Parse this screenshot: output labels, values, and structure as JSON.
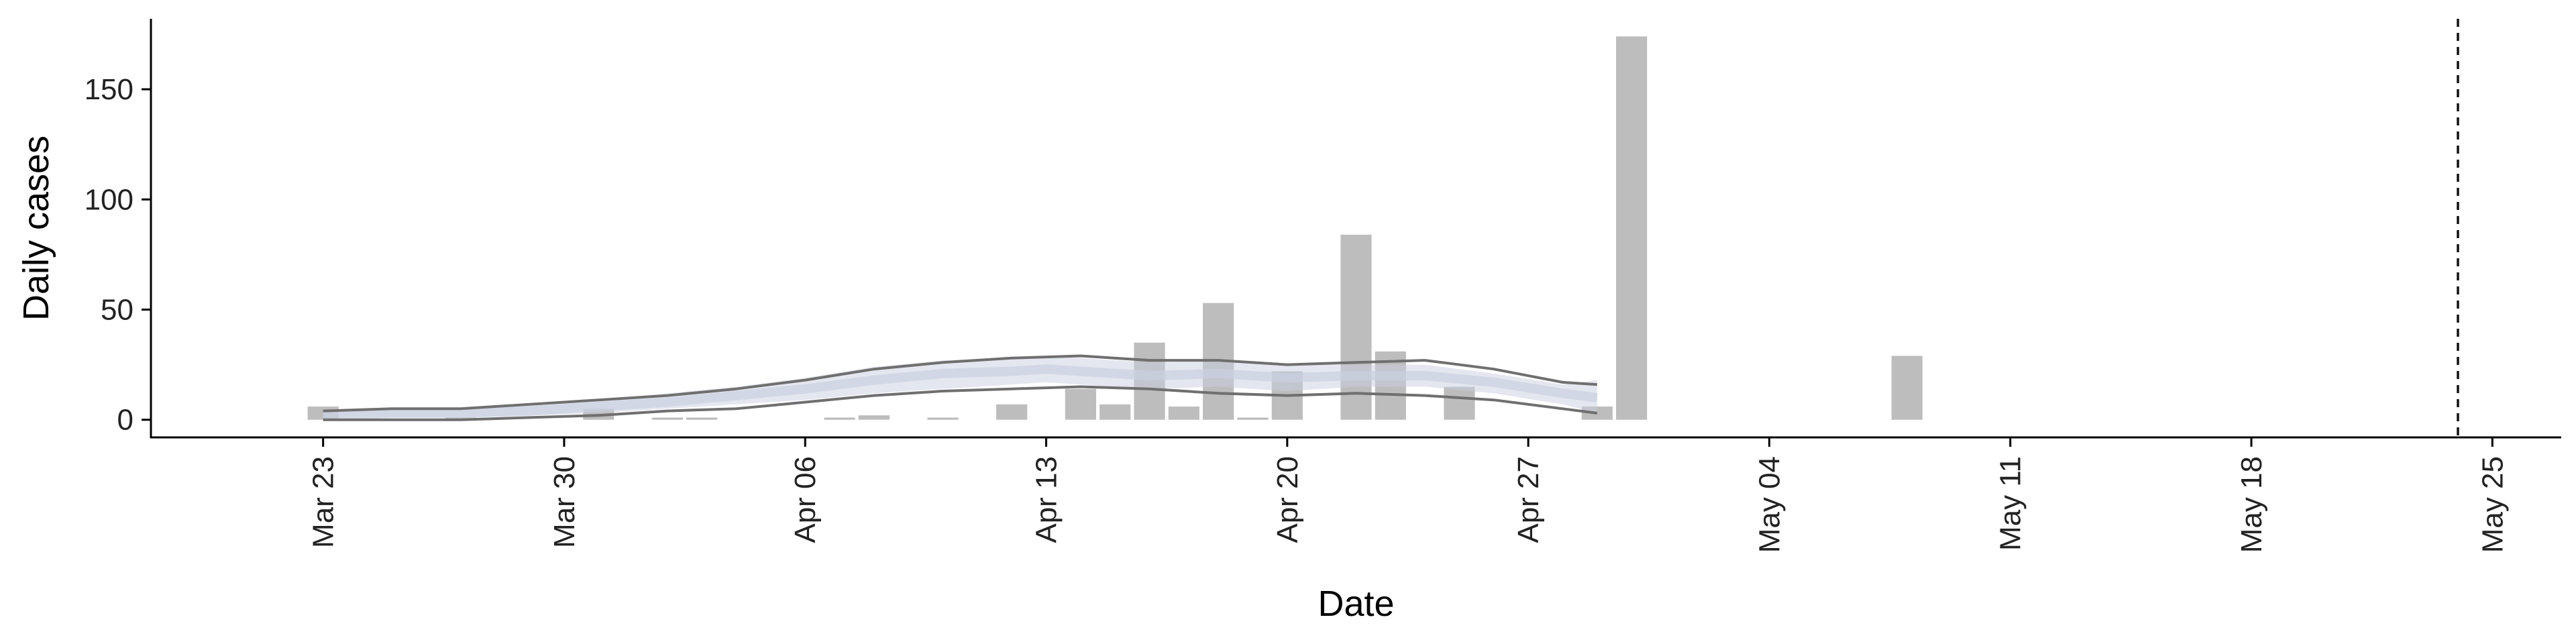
{
  "chart_data": {
    "type": "bar",
    "xlabel": "Date",
    "ylabel": "Daily cases",
    "ylim": [
      -8,
      182
    ],
    "xlim": [
      "2020-03-18",
      "2020-05-27"
    ],
    "y_ticks": [
      0,
      50,
      100,
      150
    ],
    "x_ticks": [
      {
        "date": "2020-03-23",
        "label": "Mar 23"
      },
      {
        "date": "2020-03-30",
        "label": "Mar 30"
      },
      {
        "date": "2020-04-06",
        "label": "Apr 06"
      },
      {
        "date": "2020-04-13",
        "label": "Apr 13"
      },
      {
        "date": "2020-04-20",
        "label": "Apr 20"
      },
      {
        "date": "2020-04-27",
        "label": "Apr 27"
      },
      {
        "date": "2020-05-04",
        "label": "May 04"
      },
      {
        "date": "2020-05-11",
        "label": "May 11"
      },
      {
        "date": "2020-05-18",
        "label": "May 18"
      },
      {
        "date": "2020-05-25",
        "label": "May 25"
      }
    ],
    "grid": false,
    "legend": "none",
    "vline": {
      "date": "2020-05-24",
      "style": "dashed"
    },
    "series": [
      {
        "type": "bar",
        "color": "#bdbdbd",
        "points": [
          {
            "x": "2020-03-23",
            "y": 6
          },
          {
            "x": "2020-03-27",
            "y": 1
          },
          {
            "x": "2020-03-31",
            "y": 5
          },
          {
            "x": "2020-04-02",
            "y": 1
          },
          {
            "x": "2020-04-03",
            "y": 1
          },
          {
            "x": "2020-04-07",
            "y": 1
          },
          {
            "x": "2020-04-08",
            "y": 2
          },
          {
            "x": "2020-04-10",
            "y": 1
          },
          {
            "x": "2020-04-12",
            "y": 7
          },
          {
            "x": "2020-04-14",
            "y": 14
          },
          {
            "x": "2020-04-15",
            "y": 7
          },
          {
            "x": "2020-04-16",
            "y": 35
          },
          {
            "x": "2020-04-17",
            "y": 6
          },
          {
            "x": "2020-04-18",
            "y": 53
          },
          {
            "x": "2020-04-19",
            "y": 1
          },
          {
            "x": "2020-04-20",
            "y": 22
          },
          {
            "x": "2020-04-22",
            "y": 84
          },
          {
            "x": "2020-04-23",
            "y": 31
          },
          {
            "x": "2020-04-25",
            "y": 15
          },
          {
            "x": "2020-04-29",
            "y": 6
          },
          {
            "x": "2020-04-30",
            "y": 174
          },
          {
            "x": "2020-05-08",
            "y": 29
          }
        ]
      },
      {
        "type": "ribbon",
        "color": "#c9d0e0",
        "x": [
          "2020-03-23",
          "2020-03-25",
          "2020-03-27",
          "2020-03-29",
          "2020-03-31",
          "2020-04-02",
          "2020-04-04",
          "2020-04-06",
          "2020-04-08",
          "2020-04-10",
          "2020-04-12",
          "2020-04-13",
          "2020-04-14",
          "2020-04-16",
          "2020-04-18",
          "2020-04-20",
          "2020-04-22",
          "2020-04-24",
          "2020-04-26",
          "2020-04-28",
          "2020-04-29"
        ],
        "lower": [
          1,
          1,
          1,
          2,
          3,
          5,
          7,
          9,
          12,
          14,
          16,
          17,
          16,
          14,
          15,
          13,
          15,
          15,
          12,
          7,
          3
        ],
        "upper": [
          4,
          5,
          5,
          7,
          9,
          12,
          15,
          19,
          24,
          27,
          28,
          29,
          28,
          26,
          27,
          25,
          25,
          25,
          21,
          16,
          18
        ],
        "median": [
          2,
          3,
          3,
          4,
          6,
          8,
          11,
          14,
          18,
          21,
          22,
          23,
          22,
          20,
          21,
          19,
          20,
          20,
          17,
          12,
          10
        ]
      },
      {
        "type": "line",
        "color": "#6f6f6f",
        "name": "",
        "x": [
          "2020-03-23",
          "2020-03-25",
          "2020-03-27",
          "2020-03-29",
          "2020-03-31",
          "2020-04-02",
          "2020-04-04",
          "2020-04-06",
          "2020-04-08",
          "2020-04-10",
          "2020-04-12",
          "2020-04-14",
          "2020-04-16",
          "2020-04-18",
          "2020-04-20",
          "2020-04-22",
          "2020-04-24",
          "2020-04-26",
          "2020-04-28",
          "2020-04-29"
        ],
        "values": [
          4,
          5,
          5,
          7,
          9,
          11,
          14,
          18,
          23,
          26,
          28,
          29,
          27,
          27,
          25,
          26,
          27,
          23,
          17,
          16
        ]
      },
      {
        "type": "line",
        "color": "#6f6f6f",
        "name": "",
        "x": [
          "2020-03-23",
          "2020-03-25",
          "2020-03-27",
          "2020-03-29",
          "2020-03-31",
          "2020-04-02",
          "2020-04-04",
          "2020-04-06",
          "2020-04-08",
          "2020-04-10",
          "2020-04-12",
          "2020-04-14",
          "2020-04-16",
          "2020-04-18",
          "2020-04-20",
          "2020-04-22",
          "2020-04-24",
          "2020-04-26",
          "2020-04-28",
          "2020-04-29"
        ],
        "values": [
          0,
          0,
          0,
          1,
          2,
          4,
          5,
          8,
          11,
          13,
          14,
          15,
          14,
          12,
          11,
          12,
          11,
          9,
          5,
          3
        ]
      }
    ]
  }
}
